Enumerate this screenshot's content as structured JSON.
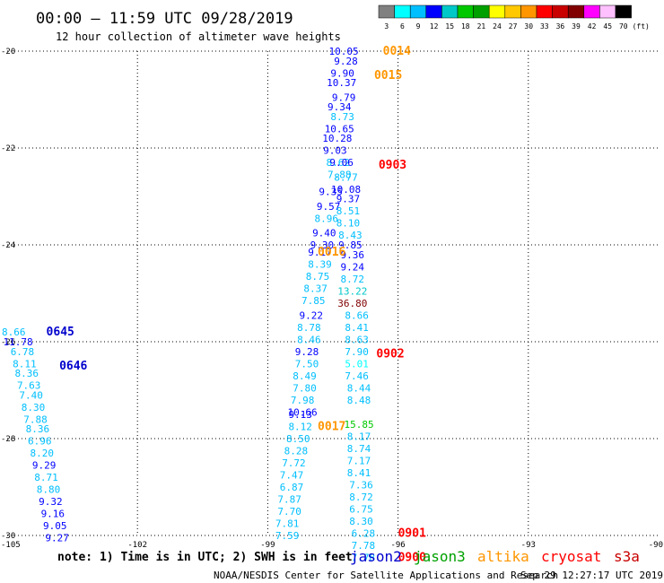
{
  "header": {
    "title": "00:00 — 11:59 UTC 09/28/2019",
    "subtitle": "12 hour collection of altimeter wave heights"
  },
  "colorbar": {
    "labels": [
      "3",
      "6",
      "9",
      "12",
      "15",
      "18",
      "21",
      "24",
      "27",
      "30",
      "33",
      "36",
      "39",
      "42",
      "45",
      "70"
    ],
    "unit": "(ft)",
    "colors": [
      "#808080",
      "#00ffff",
      "#00bfff",
      "#0000ff",
      "#00c8c8",
      "#00c800",
      "#00a000",
      "#ffff00",
      "#ffc800",
      "#ff9600",
      "#ff0000",
      "#c80000",
      "#800000",
      "#ff00ff",
      "#ffc0ff",
      "#000000"
    ]
  },
  "footer": {
    "note": "note:  1) Time is in UTC;  2) SWH is in feet",
    "credit": "NOAA/NESDIS Center for Satellite Applications and Research",
    "timestamp": "Sep 29 12:27:17 UTC 2019"
  },
  "legend": [
    {
      "name": "jason2",
      "color": "#0000cd"
    },
    {
      "name": "jason3",
      "color": "#00a000"
    },
    {
      "name": "altika",
      "color": "#ff9600"
    },
    {
      "name": "cryosat",
      "color": "#ff0000"
    },
    {
      "name": "s3a",
      "color": "#c80000"
    }
  ],
  "chart_data": {
    "type": "scatter",
    "xlim": [
      -105,
      -90
    ],
    "ylim": [
      -30,
      -20
    ],
    "x_ticks": [
      -105,
      -102,
      -99,
      -96,
      -93,
      -90
    ],
    "y_ticks": [
      -20,
      -22,
      -24,
      -26,
      -28,
      -30
    ],
    "grid": true,
    "color_scale": {
      "thresholds": [
        3,
        6,
        9,
        12,
        15,
        18,
        21,
        24,
        27,
        30,
        33,
        36,
        39,
        42,
        45,
        70
      ]
    },
    "points": [
      {
        "x": -97.25,
        "y": -20.0,
        "v": "10.05"
      },
      {
        "x": -97.2,
        "y": -20.2,
        "v": "9.28"
      },
      {
        "x": -97.28,
        "y": -20.45,
        "v": "9.90"
      },
      {
        "x": -97.3,
        "y": -20.65,
        "v": "10.37"
      },
      {
        "x": -97.25,
        "y": -20.95,
        "v": "9.79"
      },
      {
        "x": -97.35,
        "y": -21.15,
        "v": "9.34"
      },
      {
        "x": -97.28,
        "y": -21.35,
        "v": "8.73"
      },
      {
        "x": -97.35,
        "y": -21.6,
        "v": "10.65"
      },
      {
        "x": -97.4,
        "y": -21.8,
        "v": "10.28"
      },
      {
        "x": -97.45,
        "y": -22.05,
        "v": "9.03"
      },
      {
        "x": -97.38,
        "y": -22.3,
        "v": "8.62"
      },
      {
        "x": -97.3,
        "y": -22.3,
        "v": "9.06"
      },
      {
        "x": -97.35,
        "y": -22.55,
        "v": "7.88"
      },
      {
        "x": -97.2,
        "y": -22.6,
        "v": "8.77"
      },
      {
        "x": -97.2,
        "y": -22.85,
        "v": "10.08"
      },
      {
        "x": -97.55,
        "y": -22.9,
        "v": "9.35"
      },
      {
        "x": -97.15,
        "y": -23.05,
        "v": "9.37"
      },
      {
        "x": -97.6,
        "y": -23.2,
        "v": "9.57"
      },
      {
        "x": -97.15,
        "y": -23.3,
        "v": "8.51"
      },
      {
        "x": -97.65,
        "y": -23.45,
        "v": "8.96"
      },
      {
        "x": -97.15,
        "y": -23.55,
        "v": "8.10"
      },
      {
        "x": -97.7,
        "y": -23.75,
        "v": "9.40"
      },
      {
        "x": -97.1,
        "y": -23.8,
        "v": "8.43"
      },
      {
        "x": -97.75,
        "y": -24.0,
        "v": "9.30"
      },
      {
        "x": -97.1,
        "y": -24.0,
        "v": "9.85"
      },
      {
        "x": -97.8,
        "y": -24.15,
        "v": "9.17"
      },
      {
        "x": -97.05,
        "y": -24.2,
        "v": "9.36"
      },
      {
        "x": -97.8,
        "y": -24.4,
        "v": "8.39"
      },
      {
        "x": -97.05,
        "y": -24.45,
        "v": "9.24"
      },
      {
        "x": -97.85,
        "y": -24.65,
        "v": "8.75"
      },
      {
        "x": -97.05,
        "y": -24.7,
        "v": "8.72"
      },
      {
        "x": -97.9,
        "y": -24.9,
        "v": "8.37"
      },
      {
        "x": -97.05,
        "y": -24.95,
        "v": "13.22"
      },
      {
        "x": -97.95,
        "y": -25.15,
        "v": "7.85"
      },
      {
        "x": -97.05,
        "y": -25.2,
        "v": "36.80"
      },
      {
        "x": -98.0,
        "y": -25.45,
        "v": "9.22"
      },
      {
        "x": -96.95,
        "y": -25.45,
        "v": "8.66"
      },
      {
        "x": -98.05,
        "y": -25.7,
        "v": "8.78"
      },
      {
        "x": -96.95,
        "y": -25.7,
        "v": "8.41"
      },
      {
        "x": -98.05,
        "y": -25.95,
        "v": "8.46"
      },
      {
        "x": -96.95,
        "y": -25.95,
        "v": "8.63"
      },
      {
        "x": -98.1,
        "y": -26.2,
        "v": "9.28"
      },
      {
        "x": -96.95,
        "y": -26.2,
        "v": "7.90"
      },
      {
        "x": -98.1,
        "y": -26.45,
        "v": "7.50"
      },
      {
        "x": -96.95,
        "y": -26.45,
        "v": "5.01"
      },
      {
        "x": -98.15,
        "y": -26.7,
        "v": "8.49"
      },
      {
        "x": -96.95,
        "y": -26.7,
        "v": "7.46"
      },
      {
        "x": -98.15,
        "y": -26.95,
        "v": "7.80"
      },
      {
        "x": -96.9,
        "y": -26.95,
        "v": "8.44"
      },
      {
        "x": -98.2,
        "y": -27.2,
        "v": "7.98"
      },
      {
        "x": -96.9,
        "y": -27.2,
        "v": "8.48"
      },
      {
        "x": -98.2,
        "y": -27.45,
        "v": "10.66"
      },
      {
        "x": -98.25,
        "y": -27.5,
        "v": "9.13"
      },
      {
        "x": -96.9,
        "y": -27.7,
        "v": "15.85"
      },
      {
        "x": -98.25,
        "y": -27.75,
        "v": "8.12"
      },
      {
        "x": -96.9,
        "y": -27.95,
        "v": "8.17"
      },
      {
        "x": -98.3,
        "y": -28.0,
        "v": "8.50"
      },
      {
        "x": -96.9,
        "y": -28.2,
        "v": "8.74"
      },
      {
        "x": -98.35,
        "y": -28.25,
        "v": "8.28"
      },
      {
        "x": -96.9,
        "y": -28.45,
        "v": "7.17"
      },
      {
        "x": -98.4,
        "y": -28.5,
        "v": "7.72"
      },
      {
        "x": -96.9,
        "y": -28.7,
        "v": "8.41"
      },
      {
        "x": -98.45,
        "y": -28.75,
        "v": "7.47"
      },
      {
        "x": -96.85,
        "y": -28.95,
        "v": "7.36"
      },
      {
        "x": -98.45,
        "y": -29.0,
        "v": "6.87"
      },
      {
        "x": -96.85,
        "y": -29.2,
        "v": "8.72"
      },
      {
        "x": -98.5,
        "y": -29.25,
        "v": "7.87"
      },
      {
        "x": -96.85,
        "y": -29.45,
        "v": "6.75"
      },
      {
        "x": -98.5,
        "y": -29.5,
        "v": "7.70"
      },
      {
        "x": -96.85,
        "y": -29.7,
        "v": "8.30"
      },
      {
        "x": -98.55,
        "y": -29.75,
        "v": "7.81"
      },
      {
        "x": -96.8,
        "y": -29.95,
        "v": "6.28"
      },
      {
        "x": -98.55,
        "y": -30.0,
        "v": "7.59"
      },
      {
        "x": -96.8,
        "y": -30.2,
        "v": "7.78"
      },
      {
        "x": -96.8,
        "y": -30.45,
        "v": "7.78"
      },
      {
        "x": -104.85,
        "y": -25.8,
        "v": "8.66"
      },
      {
        "x": -104.75,
        "y": -26.0,
        "v": "11.78"
      },
      {
        "x": -104.65,
        "y": -26.2,
        "v": "6.78"
      },
      {
        "x": -104.6,
        "y": -26.45,
        "v": "8.11"
      },
      {
        "x": -104.55,
        "y": -26.65,
        "v": "8.36"
      },
      {
        "x": -104.5,
        "y": -26.9,
        "v": "7.63"
      },
      {
        "x": -104.45,
        "y": -27.1,
        "v": "7.40"
      },
      {
        "x": -104.4,
        "y": -27.35,
        "v": "8.30"
      },
      {
        "x": -104.35,
        "y": -27.6,
        "v": "7.88"
      },
      {
        "x": -104.3,
        "y": -27.8,
        "v": "8.36"
      },
      {
        "x": -104.25,
        "y": -28.05,
        "v": "6.96"
      },
      {
        "x": -104.2,
        "y": -28.3,
        "v": "8.20"
      },
      {
        "x": -104.15,
        "y": -28.55,
        "v": "9.29"
      },
      {
        "x": -104.1,
        "y": -28.8,
        "v": "8.71"
      },
      {
        "x": -104.05,
        "y": -29.05,
        "v": "8.80"
      },
      {
        "x": -104.0,
        "y": -29.3,
        "v": "9.32"
      },
      {
        "x": -103.95,
        "y": -29.55,
        "v": "9.16"
      },
      {
        "x": -103.9,
        "y": -29.8,
        "v": "9.05"
      },
      {
        "x": -103.85,
        "y": -30.05,
        "v": "9.27"
      }
    ],
    "time_labels": [
      {
        "x": -96.35,
        "y": -20.0,
        "t": "0014",
        "sat": "altika"
      },
      {
        "x": -96.55,
        "y": -20.5,
        "t": "0015",
        "sat": "altika"
      },
      {
        "x": -96.45,
        "y": -22.35,
        "t": "0903",
        "sat": "cryosat"
      },
      {
        "x": -97.85,
        "y": -24.15,
        "t": "0016",
        "sat": "altika"
      },
      {
        "x": -96.5,
        "y": -26.25,
        "t": "0902",
        "sat": "cryosat"
      },
      {
        "x": -97.85,
        "y": -27.75,
        "t": "0017",
        "sat": "altika"
      },
      {
        "x": -96.0,
        "y": -29.95,
        "t": "0901",
        "sat": "cryosat"
      },
      {
        "x": -96.0,
        "y": -30.45,
        "t": "0900",
        "sat": "cryosat"
      },
      {
        "x": -104.1,
        "y": -25.8,
        "t": "0645",
        "sat": "jason2"
      },
      {
        "x": -103.8,
        "y": -26.5,
        "t": "0646",
        "sat": "jason2"
      }
    ]
  }
}
